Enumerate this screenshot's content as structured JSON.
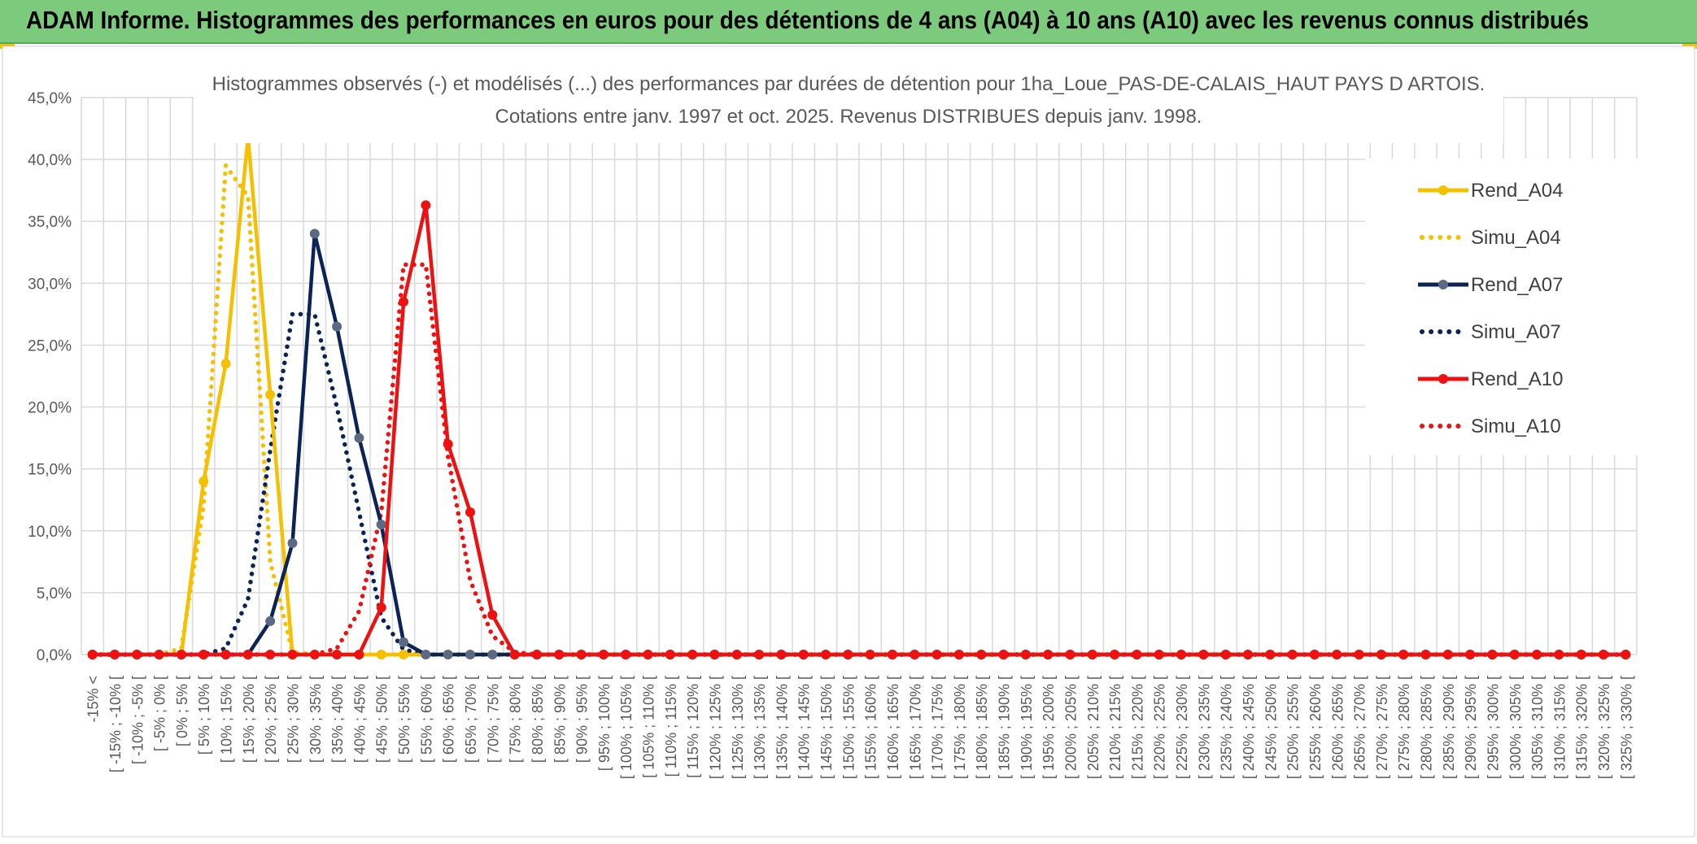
{
  "header": {
    "title": "ADAM Informe. Histogrammes des performances en euros pour des détentions de 4 ans (A04) à 10 ans (A10) avec les revenus connus distribués"
  },
  "colors": {
    "header_bg": "#7ccb7c",
    "a04": "#f5c000",
    "a07": "#0c2358",
    "a10": "#ee1111",
    "a07_marker": "#5a6a82",
    "grid": "#d9d9d9"
  },
  "chart_data": {
    "type": "line",
    "title": "Histogrammes observés (-) et modélisés (...) des performances par durées de détention pour 1ha_Loue_PAS-DE-CALAIS_HAUT PAYS D ARTOIS.",
    "subtitle": "Cotations entre janv. 1997 et oct. 2025. Revenus DISTRIBUES depuis janv. 1998.",
    "xlabel": "",
    "ylabel": "",
    "ylim": [
      0,
      45
    ],
    "yticks": [
      "0,0%",
      "5,0%",
      "10,0%",
      "15,0%",
      "20,0%",
      "25,0%",
      "30,0%",
      "35,0%",
      "40,0%",
      "45,0%"
    ],
    "grid": true,
    "legend_position": "right",
    "categories": [
      "-15% <",
      "[ -15% ; -10% [",
      "[ -10% ; -5% [",
      "[ -5% ; 0% [",
      "[ 0% ; 5% [",
      "[ 5% ; 10% [",
      "[ 10% ; 15% [",
      "[ 15% ; 20% [",
      "[ 20% ; 25% [",
      "[ 25% ; 30% [",
      "[ 30% ; 35% [",
      "[ 35% ; 40% [",
      "[ 40% ; 45% [",
      "[ 45% ; 50% [",
      "[ 50% ; 55% [",
      "[ 55% ; 60% [",
      "[ 60% ; 65% [",
      "[ 65% ; 70% [",
      "[ 70% ; 75% [",
      "[ 75% ; 80% [",
      "[ 80% ; 85% [",
      "[ 85% ; 90% [",
      "[ 90% ; 95% [",
      "[ 95% ; 100% [",
      "[ 100% ; 105% [",
      "[ 105% ; 110% [",
      "[ 110% ; 115% [",
      "[ 115% ; 120% [",
      "[ 120% ; 125% [",
      "[ 125% ; 130% [",
      "[ 130% ; 135% [",
      "[ 135% ; 140% [",
      "[ 140% ; 145% [",
      "[ 145% ; 150% [",
      "[ 150% ; 155% [",
      "[ 155% ; 160% [",
      "[ 160% ; 165% [",
      "[ 165% ; 170% [",
      "[ 170% ; 175% [",
      "[ 175% ; 180% [",
      "[ 180% ; 185% [",
      "[ 185% ; 190% [",
      "[ 190% ; 195% [",
      "[ 195% ; 200% [",
      "[ 200% ; 205% [",
      "[ 205% ; 210% [",
      "[ 210% ; 215% [",
      "[ 215% ; 220% [",
      "[ 220% ; 225% [",
      "[ 225% ; 230% [",
      "[ 230% ; 235% [",
      "[ 235% ; 240% [",
      "[ 240% ; 245% [",
      "[ 245% ; 250% [",
      "[ 250% ; 255% [",
      "[ 255% ; 260% [",
      "[ 260% ; 265% [",
      "[ 265% ; 270% [",
      "[ 270% ; 275% [",
      "[ 275% ; 280% [",
      "[ 280% ; 285% [",
      "[ 285% ; 290% [",
      "[ 290% ; 295% [",
      "[ 295% ; 300% [",
      "[ 300% ; 305% [",
      "[ 305% ; 310% [",
      "[ 310% ; 315% [",
      "[ 315% ; 320% [",
      "[ 320% ; 325% [",
      "[ 325% ; 330% ["
    ],
    "series": [
      {
        "name": "Rend_A04",
        "style": "solid",
        "color": "#f5c000",
        "values": [
          0,
          0,
          0,
          0,
          0,
          14,
          23.5,
          41.8,
          21,
          0,
          0,
          0,
          0,
          0,
          0,
          0,
          0,
          0,
          0,
          0,
          0,
          0,
          0,
          0,
          0,
          0,
          0,
          0,
          0,
          0,
          0,
          0,
          0,
          0,
          0,
          0,
          0,
          0,
          0,
          0,
          0,
          0,
          0,
          0,
          0,
          0,
          0,
          0,
          0,
          0,
          0,
          0,
          0,
          0,
          0,
          0,
          0,
          0,
          0,
          0,
          0,
          0,
          0,
          0,
          0,
          0,
          0,
          0,
          0,
          0
        ]
      },
      {
        "name": "Simu_A04",
        "style": "dotted",
        "color": "#f5c000",
        "values": [
          0,
          0,
          0,
          0,
          0.5,
          12,
          39.5,
          37,
          7.5,
          0.2,
          0,
          0,
          0,
          0,
          0,
          0,
          0,
          0,
          0,
          0,
          0,
          0,
          0,
          0,
          0,
          0,
          0,
          0,
          0,
          0,
          0,
          0,
          0,
          0,
          0,
          0,
          0,
          0,
          0,
          0,
          0,
          0,
          0,
          0,
          0,
          0,
          0,
          0,
          0,
          0,
          0,
          0,
          0,
          0,
          0,
          0,
          0,
          0,
          0,
          0,
          0,
          0,
          0,
          0,
          0,
          0,
          0,
          0,
          0,
          0
        ]
      },
      {
        "name": "Rend_A07",
        "style": "solid",
        "color": "#0c2358",
        "values": [
          0,
          0,
          0,
          0,
          0,
          0,
          0,
          0,
          2.7,
          9,
          34,
          26.5,
          17.5,
          10.5,
          1,
          0,
          0,
          0,
          0,
          0,
          0,
          0,
          0,
          0,
          0,
          0,
          0,
          0,
          0,
          0,
          0,
          0,
          0,
          0,
          0,
          0,
          0,
          0,
          0,
          0,
          0,
          0,
          0,
          0,
          0,
          0,
          0,
          0,
          0,
          0,
          0,
          0,
          0,
          0,
          0,
          0,
          0,
          0,
          0,
          0,
          0,
          0,
          0,
          0,
          0,
          0,
          0,
          0,
          0,
          0
        ]
      },
      {
        "name": "Simu_A07",
        "style": "dotted",
        "color": "#0c2358",
        "values": [
          0,
          0,
          0,
          0,
          0,
          0,
          0.5,
          4.5,
          16.5,
          27.5,
          27.5,
          20,
          11.5,
          3,
          0.4,
          0,
          0,
          0,
          0,
          0,
          0,
          0,
          0,
          0,
          0,
          0,
          0,
          0,
          0,
          0,
          0,
          0,
          0,
          0,
          0,
          0,
          0,
          0,
          0,
          0,
          0,
          0,
          0,
          0,
          0,
          0,
          0,
          0,
          0,
          0,
          0,
          0,
          0,
          0,
          0,
          0,
          0,
          0,
          0,
          0,
          0,
          0,
          0,
          0,
          0,
          0,
          0,
          0,
          0,
          0
        ]
      },
      {
        "name": "Rend_A10",
        "style": "solid",
        "color": "#ee1111",
        "values": [
          0,
          0,
          0,
          0,
          0,
          0,
          0,
          0,
          0,
          0,
          0,
          0,
          0,
          3.8,
          28.5,
          36.3,
          17,
          11.5,
          3.2,
          0,
          0,
          0,
          0,
          0,
          0,
          0,
          0,
          0,
          0,
          0,
          0,
          0,
          0,
          0,
          0,
          0,
          0,
          0,
          0,
          0,
          0,
          0,
          0,
          0,
          0,
          0,
          0,
          0,
          0,
          0,
          0,
          0,
          0,
          0,
          0,
          0,
          0,
          0,
          0,
          0,
          0,
          0,
          0,
          0,
          0,
          0,
          0,
          0,
          0,
          0
        ]
      },
      {
        "name": "Simu_A10",
        "style": "dotted",
        "color": "#ee1111",
        "values": [
          0,
          0,
          0,
          0,
          0,
          0,
          0,
          0,
          0,
          0,
          0,
          0.5,
          3.5,
          11.5,
          31.5,
          31.5,
          16,
          6,
          1.5,
          0.2,
          0,
          0,
          0,
          0,
          0,
          0,
          0,
          0,
          0,
          0,
          0,
          0,
          0,
          0,
          0,
          0,
          0,
          0,
          0,
          0,
          0,
          0,
          0,
          0,
          0,
          0,
          0,
          0,
          0,
          0,
          0,
          0,
          0,
          0,
          0,
          0,
          0,
          0,
          0,
          0,
          0,
          0,
          0,
          0,
          0,
          0,
          0,
          0,
          0,
          0
        ]
      }
    ]
  }
}
